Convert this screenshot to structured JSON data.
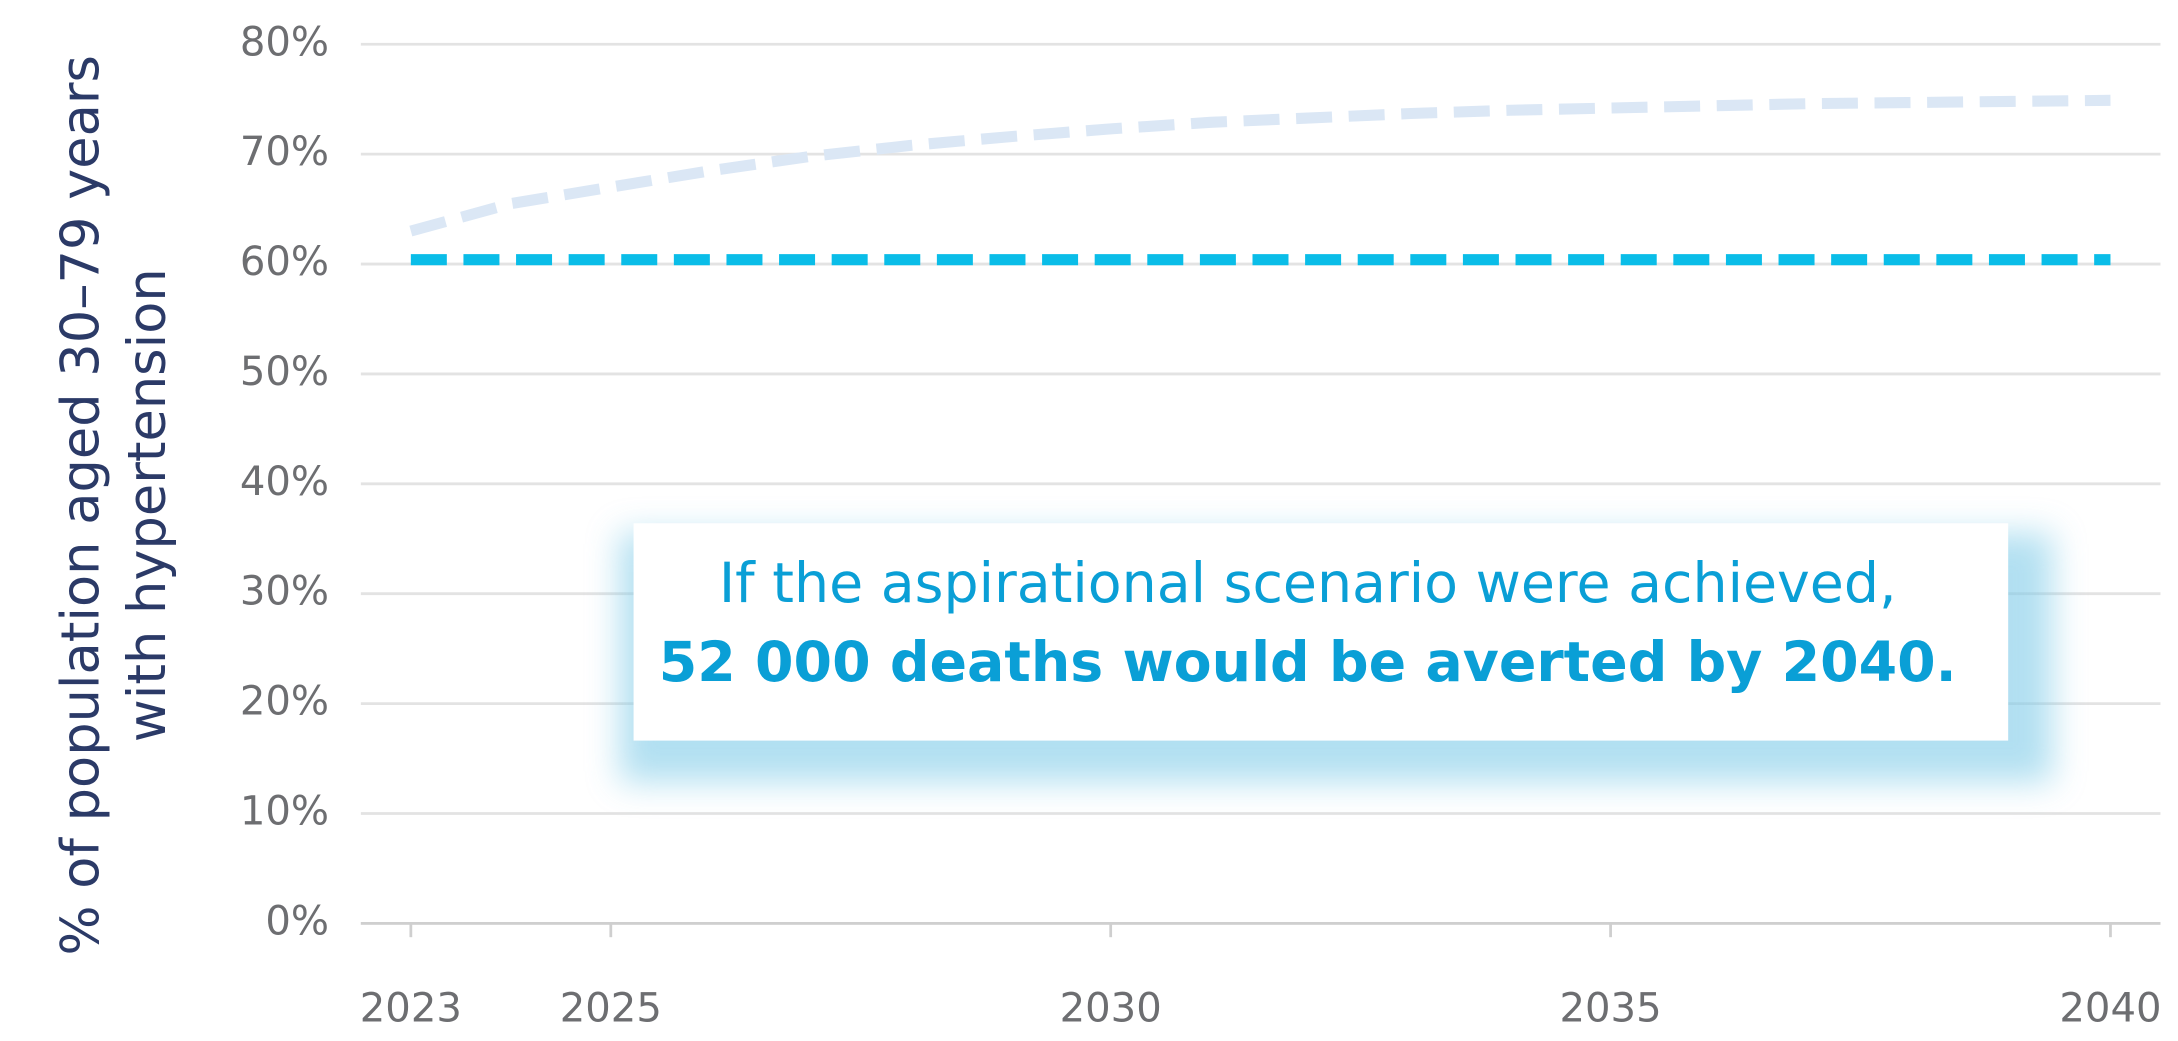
{
  "chart_data": {
    "type": "line",
    "y_label_lines": [
      "% of population aged 30–79 years",
      "with hypertension"
    ],
    "x": [
      2023,
      2024,
      2025,
      2026,
      2027,
      2028,
      2029,
      2030,
      2031,
      2032,
      2033,
      2034,
      2035,
      2036,
      2037,
      2038,
      2039,
      2040
    ],
    "series": [
      {
        "color": "#dbe7f5",
        "values": [
          63,
          65.5,
          67,
          68.5,
          69.8,
          70.8,
          71.6,
          72.3,
          72.9,
          73.3,
          73.7,
          74,
          74.2,
          74.4,
          74.6,
          74.7,
          74.8,
          74.9
        ]
      },
      {
        "color": "#0abde8",
        "values": [
          60.4,
          60.4,
          60.4,
          60.4,
          60.4,
          60.4,
          60.4,
          60.4,
          60.4,
          60.4,
          60.4,
          60.4,
          60.4,
          60.4,
          60.4,
          60.4,
          60.4,
          60.4
        ]
      }
    ],
    "xlim": [
      2022.5,
      2040.5
    ],
    "xticks": [
      2023,
      2025,
      2030,
      2035,
      2040
    ],
    "ylim": [
      0,
      80
    ],
    "yticks": [
      {
        "value": 0,
        "label": "0%"
      },
      {
        "value": 10,
        "label": "10%"
      },
      {
        "value": 20,
        "label": "20%"
      },
      {
        "value": 30,
        "label": "30%"
      },
      {
        "value": 40,
        "label": "40%"
      },
      {
        "value": 50,
        "label": "50%"
      },
      {
        "value": 60,
        "label": "60%"
      },
      {
        "value": 70,
        "label": "70%"
      },
      {
        "value": 80,
        "label": "80%"
      }
    ],
    "grid": true,
    "dashed": true,
    "annotation": {
      "line1": "If the aspirational scenario were achieved,",
      "line2": "52 000 deaths would be averted by 2040."
    }
  }
}
